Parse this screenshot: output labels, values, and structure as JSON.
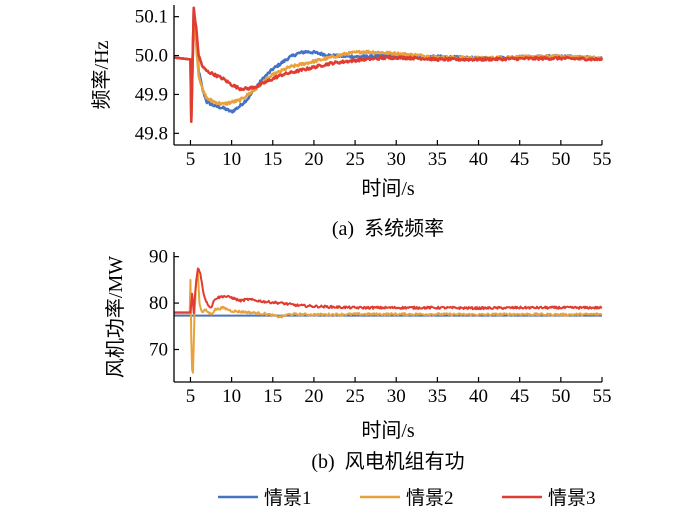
{
  "chart_data": [
    {
      "type": "line",
      "caption": "(a)  系统频率",
      "xlabel": "时间/s",
      "ylabel": "频率/Hz",
      "xlim": [
        3,
        55
      ],
      "ylim": [
        49.77,
        50.13
      ],
      "xticks": [
        5,
        10,
        15,
        20,
        25,
        30,
        35,
        40,
        45,
        50,
        55
      ],
      "yticks": [
        49.8,
        49.9,
        50.0,
        50.1
      ],
      "ytick_labels": [
        "49.8",
        "49.9",
        "50.0",
        "50.1"
      ],
      "grid": false,
      "series": [
        {
          "name": "情景1",
          "color": "#4472c4",
          "x": [
            3,
            5,
            5.1,
            5.4,
            5.7,
            6.0,
            6.5,
            7,
            8,
            9,
            10,
            11,
            12,
            13,
            14,
            15,
            16,
            17,
            18,
            19,
            20,
            22,
            25,
            28,
            30,
            33,
            35,
            40,
            45,
            50,
            55
          ],
          "y": [
            49.995,
            49.99,
            49.84,
            50.11,
            50.04,
            49.96,
            49.91,
            49.88,
            49.87,
            49.865,
            49.855,
            49.87,
            49.89,
            49.92,
            49.945,
            49.965,
            49.98,
            49.995,
            50.005,
            50.01,
            50.008,
            50.0,
            49.997,
            49.998,
            50.0,
            49.995,
            49.997,
            49.993,
            49.996,
            49.998,
            49.993
          ]
        },
        {
          "name": "情景2",
          "color": "#e9a23b",
          "x": [
            3,
            5,
            5.1,
            5.4,
            5.7,
            6.0,
            6.5,
            7,
            8,
            9,
            10,
            11,
            12,
            13,
            14,
            15,
            16,
            17,
            18,
            20,
            22,
            24,
            26,
            28,
            30,
            33,
            35,
            40,
            45,
            50,
            55
          ],
          "y": [
            49.995,
            49.99,
            49.84,
            50.11,
            50.03,
            49.95,
            49.91,
            49.89,
            49.88,
            49.875,
            49.88,
            49.885,
            49.9,
            49.915,
            49.935,
            49.95,
            49.96,
            49.97,
            49.975,
            49.985,
            49.995,
            50.005,
            50.01,
            50.008,
            50.005,
            50.0,
            49.995,
            49.993,
            49.996,
            49.998,
            49.993
          ]
        },
        {
          "name": "情景3",
          "color": "#e03c31",
          "x": [
            3,
            5,
            5.1,
            5.4,
            5.7,
            6.0,
            6.5,
            7,
            8,
            9,
            10,
            11,
            12,
            13,
            14,
            15,
            16,
            17,
            18,
            20,
            22,
            24,
            26,
            28,
            30,
            33,
            35,
            40,
            45,
            50,
            55
          ],
          "y": [
            49.995,
            49.99,
            49.83,
            50.12,
            50.07,
            50.0,
            49.97,
            49.96,
            49.95,
            49.94,
            49.925,
            49.915,
            49.915,
            49.92,
            49.93,
            49.94,
            49.95,
            49.955,
            49.96,
            49.97,
            49.98,
            49.985,
            49.99,
            49.993,
            49.995,
            49.993,
            49.99,
            49.99,
            49.992,
            49.993,
            49.99
          ]
        }
      ]
    },
    {
      "type": "line",
      "caption": "(b)  风电机组有功",
      "xlabel": "时间/s",
      "ylabel": "风机功率/MW",
      "xlim": [
        3,
        55
      ],
      "ylim": [
        63,
        91
      ],
      "xticks": [
        5,
        10,
        15,
        20,
        25,
        30,
        35,
        40,
        45,
        50,
        55
      ],
      "yticks": [
        70,
        80,
        90
      ],
      "grid": false,
      "series": [
        {
          "name": "情景1",
          "color": "#4472c4",
          "x": [
            3,
            55
          ],
          "y": [
            77.3,
            77.3
          ]
        },
        {
          "name": "情景2",
          "color": "#e9a23b",
          "x": [
            3,
            4.9,
            5.0,
            5.15,
            5.3,
            5.5,
            5.7,
            5.9,
            6.1,
            6.4,
            6.8,
            7.5,
            8,
            9,
            10,
            12,
            14,
            16,
            17,
            20,
            25,
            30,
            35,
            40,
            45,
            50,
            55
          ],
          "y": [
            77.8,
            77.8,
            85,
            66,
            65,
            78,
            85,
            86.5,
            80,
            78,
            78.5,
            77.6,
            78.6,
            79,
            78.3,
            78,
            77.7,
            77,
            77.6,
            77.5,
            77.6,
            77.6,
            77.6,
            77.5,
            77.6,
            77.5,
            77.6
          ]
        },
        {
          "name": "情景3",
          "color": "#e03c31",
          "x": [
            3,
            5.0,
            5.2,
            5.4,
            5.6,
            5.9,
            6.2,
            6.6,
            7,
            7.5,
            8,
            9,
            10,
            11,
            12,
            14,
            16,
            18,
            20,
            25,
            30,
            35,
            40,
            45,
            50,
            55
          ],
          "y": [
            78,
            78,
            82,
            78,
            83,
            87.5,
            86.5,
            82,
            80,
            79,
            81,
            81.5,
            81.2,
            80.5,
            80.8,
            80.3,
            80,
            79.5,
            79.3,
            79,
            79,
            79,
            78.9,
            79,
            79,
            79
          ]
        }
      ]
    }
  ],
  "legend": {
    "placement": "bottom",
    "items": [
      {
        "label": "情景1",
        "color": "#4472c4"
      },
      {
        "label": "情景2",
        "color": "#e9a23b"
      },
      {
        "label": "情景3",
        "color": "#e03c31"
      }
    ]
  }
}
